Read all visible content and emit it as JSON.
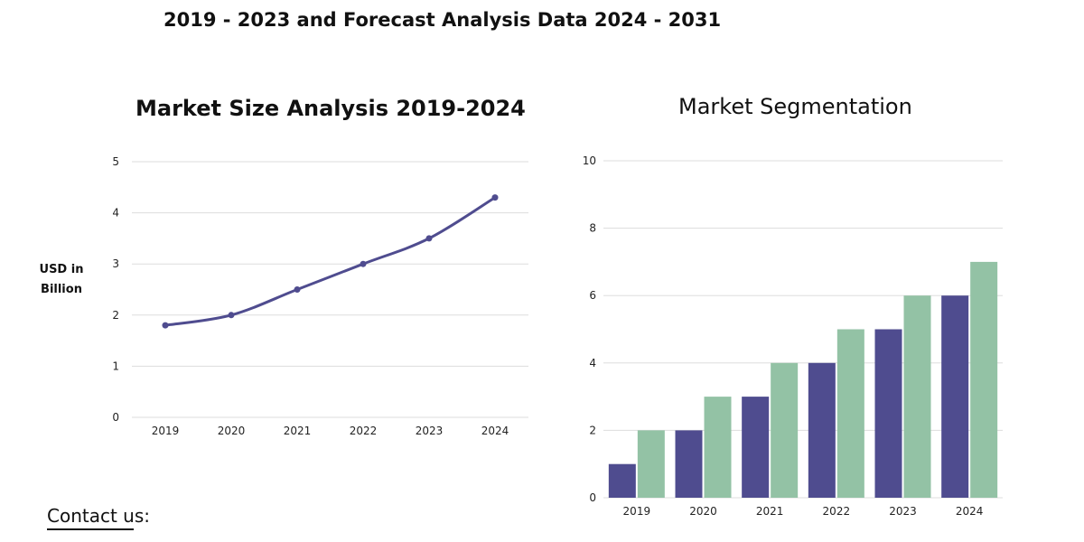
{
  "header": {
    "subtitle": "2019 - 2023 and Forecast Analysis Data 2024 - 2031"
  },
  "footer": {
    "contact": "Contact us:"
  },
  "colors": {
    "line": "#4f4c8f",
    "series_a": "#4f4c8f",
    "series_b": "#93c2a5",
    "grid": "#dddddd"
  },
  "chart_data": [
    {
      "type": "line",
      "title": "Market Size Analysis 2019-2024",
      "ylabel": "USD in Billion",
      "xlabel": "",
      "x": [
        "2019",
        "2020",
        "2021",
        "2022",
        "2023",
        "2024"
      ],
      "y": [
        1.8,
        2.0,
        2.5,
        3.0,
        3.5,
        4.3
      ],
      "ylim": [
        0,
        5
      ],
      "yticks": [
        0,
        1,
        2,
        3,
        4,
        5
      ],
      "grid": true
    },
    {
      "type": "bar",
      "title": "Market Segmentation",
      "xlabel": "",
      "ylabel": "",
      "categories": [
        "2019",
        "2020",
        "2021",
        "2022",
        "2023",
        "2024"
      ],
      "series": [
        {
          "values": [
            1,
            2,
            3,
            4,
            5,
            6
          ]
        },
        {
          "values": [
            2,
            3,
            4,
            5,
            6,
            7
          ]
        }
      ],
      "ylim": [
        0,
        10
      ],
      "yticks": [
        0,
        2,
        4,
        6,
        8,
        10
      ],
      "grid": true
    }
  ]
}
